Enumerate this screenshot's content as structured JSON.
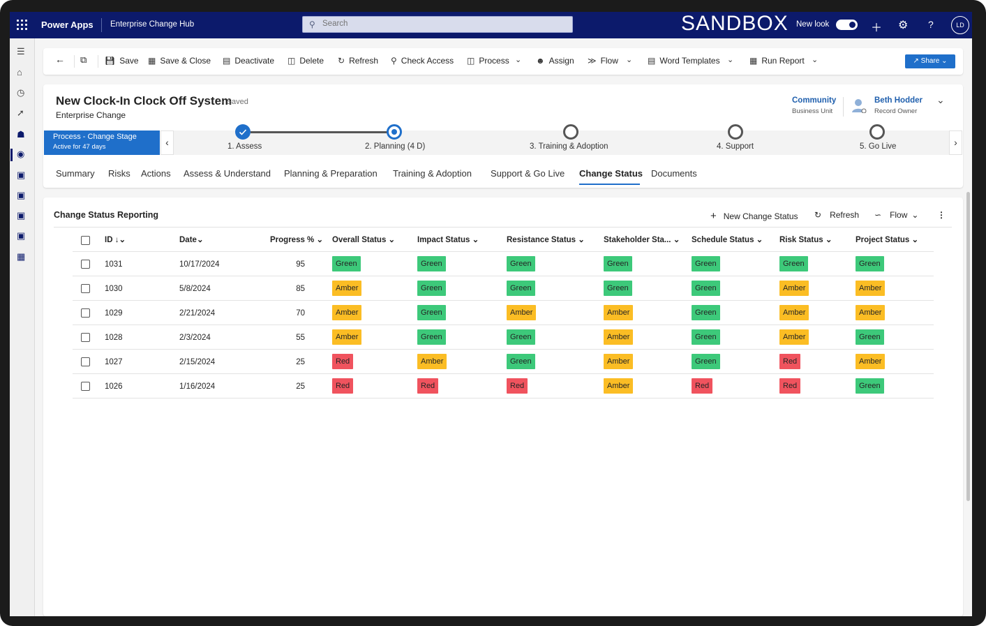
{
  "topbar": {
    "app_name": "Power Apps",
    "env_name": "Enterprise Change Hub",
    "search_placeholder": "Search",
    "sandbox": "SANDBOX",
    "new_look_label": "New look",
    "new_look_on": true,
    "user_initials": "LD"
  },
  "commands": {
    "save": "Save",
    "save_close": "Save & Close",
    "deactivate": "Deactivate",
    "delete": "Delete",
    "refresh": "Refresh",
    "check_access": "Check Access",
    "process": "Process",
    "assign": "Assign",
    "flow": "Flow",
    "word_templates": "Word Templates",
    "run_report": "Run Report",
    "share": "Share"
  },
  "record": {
    "title": "New Clock-In Clock Off System",
    "status": "- Saved",
    "entity": "Enterprise Change",
    "business_unit": "Community",
    "business_unit_label": "Business Unit",
    "owner": "Beth Hodder",
    "owner_label": "Record Owner"
  },
  "process": {
    "name": "Process - Change Stage",
    "duration": "Active for 47 days",
    "stages": [
      {
        "label": "1. Assess",
        "state": "completed"
      },
      {
        "label": "2. Planning  (4 D)",
        "state": "active"
      },
      {
        "label": "3. Training & Adoption",
        "state": "pending"
      },
      {
        "label": "4. Support",
        "state": "pending"
      },
      {
        "label": "5. Go Live",
        "state": "pending"
      }
    ]
  },
  "tabs": [
    "Summary",
    "Risks",
    "Actions",
    "Assess & Understand",
    "Planning & Preparation",
    "Training & Adoption",
    "Support & Go Live",
    "Change Status",
    "Documents"
  ],
  "active_tab": "Change Status",
  "grid": {
    "title": "Change Status Reporting",
    "new_label": "New Change Status",
    "refresh_label": "Refresh",
    "flow_label": "Flow",
    "columns": [
      "ID",
      "Date",
      "Progress %",
      "Overall Status",
      "Impact Status",
      "Resistance Status",
      "Stakeholder Sta...",
      "Schedule Status",
      "Risk Status",
      "Project Status"
    ],
    "rows": [
      {
        "id": "1031",
        "date": "10/17/2024",
        "progress": "95",
        "statuses": [
          "Green",
          "Green",
          "Green",
          "Green",
          "Green",
          "Green",
          "Green"
        ]
      },
      {
        "id": "1030",
        "date": "5/8/2024",
        "progress": "85",
        "statuses": [
          "Amber",
          "Green",
          "Green",
          "Green",
          "Green",
          "Amber",
          "Amber"
        ]
      },
      {
        "id": "1029",
        "date": "2/21/2024",
        "progress": "70",
        "statuses": [
          "Amber",
          "Green",
          "Amber",
          "Amber",
          "Green",
          "Amber",
          "Amber"
        ]
      },
      {
        "id": "1028",
        "date": "2/3/2024",
        "progress": "55",
        "statuses": [
          "Amber",
          "Green",
          "Green",
          "Amber",
          "Green",
          "Amber",
          "Green"
        ]
      },
      {
        "id": "1027",
        "date": "2/15/2024",
        "progress": "25",
        "statuses": [
          "Red",
          "Amber",
          "Green",
          "Amber",
          "Green",
          "Red",
          "Amber"
        ]
      },
      {
        "id": "1026",
        "date": "1/16/2024",
        "progress": "25",
        "statuses": [
          "Red",
          "Red",
          "Red",
          "Amber",
          "Red",
          "Red",
          "Green"
        ]
      }
    ]
  },
  "colors": {
    "nav": "#0c1a6b",
    "accent": "#1f6fca",
    "Green": "#3dc97a",
    "Amber": "#fbbd24",
    "Red": "#f0535e"
  }
}
